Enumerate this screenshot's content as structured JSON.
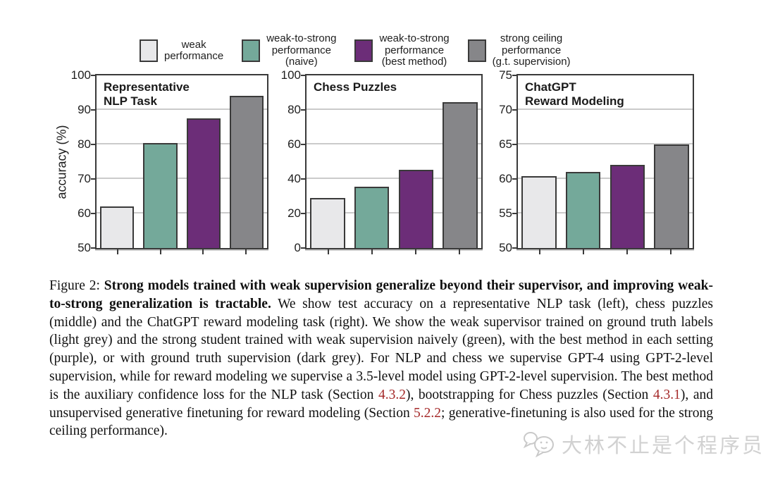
{
  "colors": {
    "series": [
      "#e8e8ea",
      "#74a99a",
      "#6c2d78",
      "#868689"
    ],
    "bar_border": "#3a3a3a",
    "gridline": "#cbcbcb",
    "section_ref": "#a52a2a",
    "watermark": "#c4c4c4"
  },
  "legend": {
    "items": [
      {
        "name": "weak-performance",
        "label": "weak\nperformance",
        "color": "#e8e8ea"
      },
      {
        "name": "weak-to-strong-naive",
        "label": "weak-to-strong\nperformance\n(naive)",
        "color": "#74a99a"
      },
      {
        "name": "weak-to-strong-best",
        "label": "weak-to-strong\nperformance\n(best method)",
        "color": "#6c2d78"
      },
      {
        "name": "strong-ceiling",
        "label": "strong ceiling\nperformance\n(g.t. supervision)",
        "color": "#868689"
      }
    ]
  },
  "chart_data": [
    {
      "type": "bar",
      "title": "Representative\nNLP Task",
      "ylabel": "accuracy (%)",
      "ylim": [
        50,
        100
      ],
      "yticks": [
        50,
        60,
        70,
        80,
        90,
        100
      ],
      "grid": true,
      "legend_position": "top",
      "categories": [
        "weak performance",
        "weak-to-strong performance (naive)",
        "weak-to-strong performance (best method)",
        "strong ceiling performance (g.t. supervision)"
      ],
      "values": [
        62,
        80.5,
        87.5,
        94
      ]
    },
    {
      "type": "bar",
      "title": "Chess Puzzles",
      "ylabel": "",
      "ylim": [
        0,
        100
      ],
      "yticks": [
        0,
        20,
        40,
        60,
        80,
        100
      ],
      "grid": true,
      "legend_position": "top",
      "categories": [
        "weak performance",
        "weak-to-strong performance (naive)",
        "weak-to-strong performance (best method)",
        "strong ceiling performance (g.t. supervision)"
      ],
      "values": [
        29,
        35.5,
        45.5,
        84.5
      ]
    },
    {
      "type": "bar",
      "title": "ChatGPT\nReward Modeling",
      "ylabel": "",
      "ylim": [
        50,
        75
      ],
      "yticks": [
        50,
        55,
        60,
        65,
        70,
        75
      ],
      "grid": true,
      "legend_position": "top",
      "categories": [
        "weak performance",
        "weak-to-strong performance (naive)",
        "weak-to-strong performance (best method)",
        "strong ceiling performance (g.t. supervision)"
      ],
      "values": [
        60.4,
        61,
        62,
        65
      ]
    }
  ],
  "caption": {
    "segments": [
      {
        "style": "normal",
        "text": "Figure 2: "
      },
      {
        "style": "bold",
        "text": "Strong models trained with weak supervision generalize beyond their supervisor, and improving weak-to-strong generalization is tractable."
      },
      {
        "style": "normal",
        "text": " We show test accuracy on a representative NLP task (left), chess puzzles (middle) and the ChatGPT reward modeling task (right). We show the weak supervisor trained on ground truth labels (light grey) and the strong student trained with weak supervision naively (green), with the best method in each setting (purple), or with ground truth supervision (dark grey).  For NLP and chess we supervise GPT-4 using GPT-2-level supervision, while for reward modeling we supervise a 3.5-level model using GPT-2-level supervision. The best method is the auxiliary confidence loss for the NLP task (Section "
      },
      {
        "style": "ref",
        "text": "4.3.2"
      },
      {
        "style": "normal",
        "text": "), bootstrapping for Chess puzzles (Section "
      },
      {
        "style": "ref",
        "text": "4.3.1"
      },
      {
        "style": "normal",
        "text": "), and unsupervised generative finetuning for reward modeling (Section "
      },
      {
        "style": "ref",
        "text": "5.2.2"
      },
      {
        "style": "normal",
        "text": "; generative-finetuning is also used for the strong ceiling performance)."
      }
    ]
  },
  "watermark": {
    "text": "大林不止是个程序员",
    "icon": "chat-bubbles-face-icon"
  }
}
